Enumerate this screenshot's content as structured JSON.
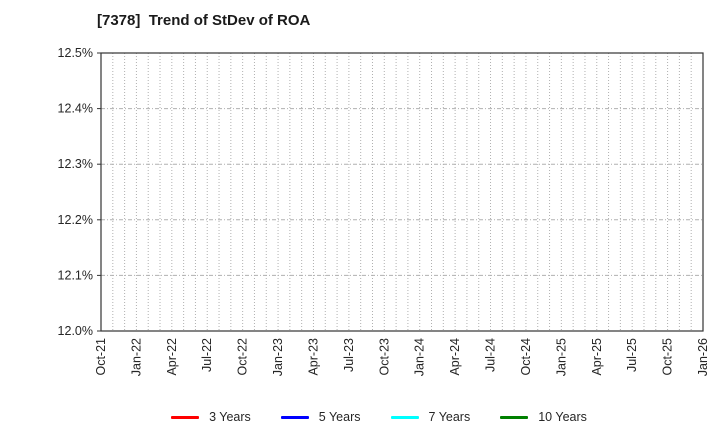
{
  "header": {
    "title": "[7378]  Trend of StDev of ROA"
  },
  "chart_data": {
    "type": "line",
    "title": "[7378]  Trend of StDev of ROA",
    "x_tick_labels": [
      "Oct-21",
      "Jan-22",
      "Apr-22",
      "Jul-22",
      "Oct-22",
      "Jan-23",
      "Apr-23",
      "Jul-23",
      "Oct-23",
      "Jan-24",
      "Apr-24",
      "Jul-24",
      "Oct-24",
      "Jan-25",
      "Apr-25",
      "Jul-25",
      "Oct-25",
      "Jan-26"
    ],
    "x_total_months": 51,
    "x_label_interval_months": 3,
    "x_minor_gridline_interval_months": 1,
    "y_tick_labels": [
      "12.0%",
      "12.1%",
      "12.2%",
      "12.3%",
      "12.4%",
      "12.5%"
    ],
    "ylim": [
      12.0,
      12.5
    ],
    "y_unit": "%",
    "grid": true,
    "legend_position": "bottom",
    "series": [
      {
        "name": "3 Years",
        "color": "#ff0000",
        "values": []
      },
      {
        "name": "5 Years",
        "color": "#0000ff",
        "values": []
      },
      {
        "name": "7 Years",
        "color": "#00ffff",
        "values": []
      },
      {
        "name": "10 Years",
        "color": "#008000",
        "values": []
      }
    ],
    "colors": {
      "axis_border": "#333333",
      "grid": "#b0b0b0",
      "tick_label": "#262626",
      "background": "#ffffff"
    }
  }
}
